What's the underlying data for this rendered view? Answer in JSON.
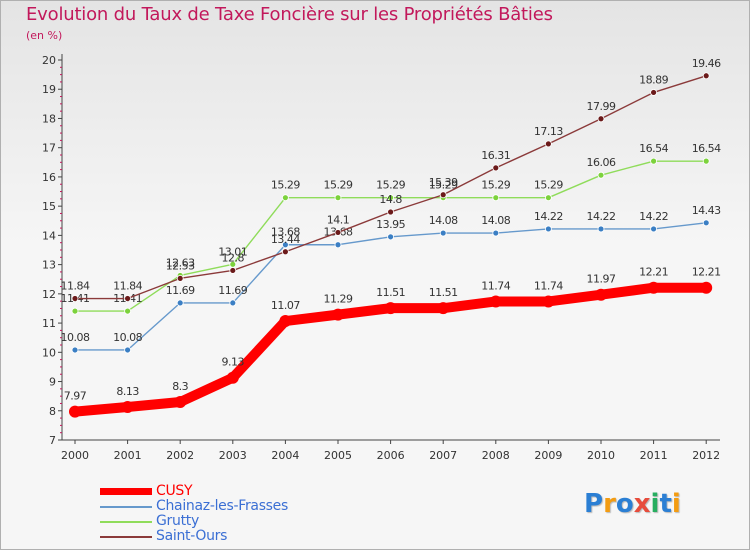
{
  "header": {
    "title": "Evolution du Taux de Taxe Foncière sur les Propriétés Bâties",
    "subtitle": "(en %)"
  },
  "logo": {
    "text": "Proxiti",
    "letters": [
      {
        "ch": "P",
        "color": "#2b7fd4"
      },
      {
        "ch": "r",
        "color": "#f39c12"
      },
      {
        "ch": "o",
        "color": "#2b7fd4"
      },
      {
        "ch": "x",
        "color": "#e74c3c"
      },
      {
        "ch": "i",
        "color": "#27ae60"
      },
      {
        "ch": "t",
        "color": "#2b7fd4"
      },
      {
        "ch": "i",
        "color": "#f39c12"
      }
    ]
  },
  "chart_data": {
    "type": "line",
    "title": "Evolution du Taux de Taxe Foncière sur les Propriétés Bâties",
    "ylabel": "(en %)",
    "xlabel": "",
    "x": [
      "2000",
      "2001",
      "2002",
      "2003",
      "2004",
      "2005",
      "2006",
      "2007",
      "2008",
      "2009",
      "2010",
      "2011",
      "2012"
    ],
    "ylim": [
      7,
      20
    ],
    "yticks": [
      "7",
      "8",
      "9",
      "10",
      "11",
      "12",
      "13",
      "14",
      "15",
      "16",
      "17",
      "18",
      "19",
      "20"
    ],
    "grid": false,
    "legend_position": "bottom-left",
    "series": [
      {
        "name": "CUSY",
        "color": "#ff0000",
        "labelColor": "#333333",
        "bold": true,
        "values": [
          7.97,
          8.13,
          8.3,
          9.13,
          11.07,
          11.29,
          11.51,
          11.51,
          11.74,
          11.74,
          11.97,
          12.21,
          12.21
        ],
        "labels": [
          "7.97",
          "8.13",
          "8.3",
          "9.13",
          "11.07",
          "11.29",
          "11.51",
          "11.51",
          "11.74",
          "11.74",
          "11.97",
          "12.21",
          "12.21"
        ]
      },
      {
        "name": "Chainaz-les-Frasses",
        "color": "#6699cc",
        "markerColor": "#3b7fc4",
        "labelColor": "#333333",
        "bold": false,
        "values": [
          10.08,
          10.08,
          11.69,
          11.69,
          13.68,
          13.68,
          13.95,
          14.08,
          14.08,
          14.22,
          14.22,
          14.22,
          14.43
        ],
        "labels": [
          "10.08",
          "10.08",
          "11.69",
          "11.69",
          "13.68",
          "13.68",
          "13.95",
          "14.08",
          "14.08",
          "14.22",
          "14.22",
          "14.22",
          "14.43"
        ]
      },
      {
        "name": "Grutty",
        "color": "#8fdc5a",
        "markerColor": "#7cd23c",
        "labelColor": "#333333",
        "bold": false,
        "values": [
          11.41,
          11.41,
          12.63,
          13.01,
          15.29,
          15.29,
          15.29,
          15.29,
          15.29,
          15.29,
          16.06,
          16.54,
          16.54
        ],
        "labels": [
          "11.41",
          "11.41",
          "12.63",
          "13.01",
          "15.29",
          "15.29",
          "15.29",
          "15.29",
          "15.29",
          "15.29",
          "16.06",
          "16.54",
          "16.54"
        ]
      },
      {
        "name": "Saint-Ours",
        "color": "#8b3a3a",
        "markerColor": "#6b1a1a",
        "labelColor": "#333333",
        "bold": false,
        "values": [
          11.84,
          11.84,
          12.53,
          12.8,
          13.44,
          14.1,
          14.8,
          15.39,
          16.31,
          17.13,
          17.99,
          18.89,
          19.46
        ],
        "labels": [
          "11.84",
          "11.84",
          "12.53",
          "12.8",
          "13.44",
          "14.1",
          "14.8",
          "15.39",
          "16.31",
          "17.13",
          "17.99",
          "18.89",
          "19.46"
        ]
      }
    ]
  },
  "legend": {
    "items": [
      {
        "label": "CUSY",
        "color": "#ff0000",
        "textColor": "#ff0000"
      },
      {
        "label": "Chainaz-les-Frasses",
        "color": "#6699cc",
        "textColor": "#3b6fd4"
      },
      {
        "label": "Grutty",
        "color": "#8fdc5a",
        "textColor": "#3b6fd4"
      },
      {
        "label": "Saint-Ours",
        "color": "#8b3a3a",
        "textColor": "#3b6fd4"
      }
    ]
  }
}
